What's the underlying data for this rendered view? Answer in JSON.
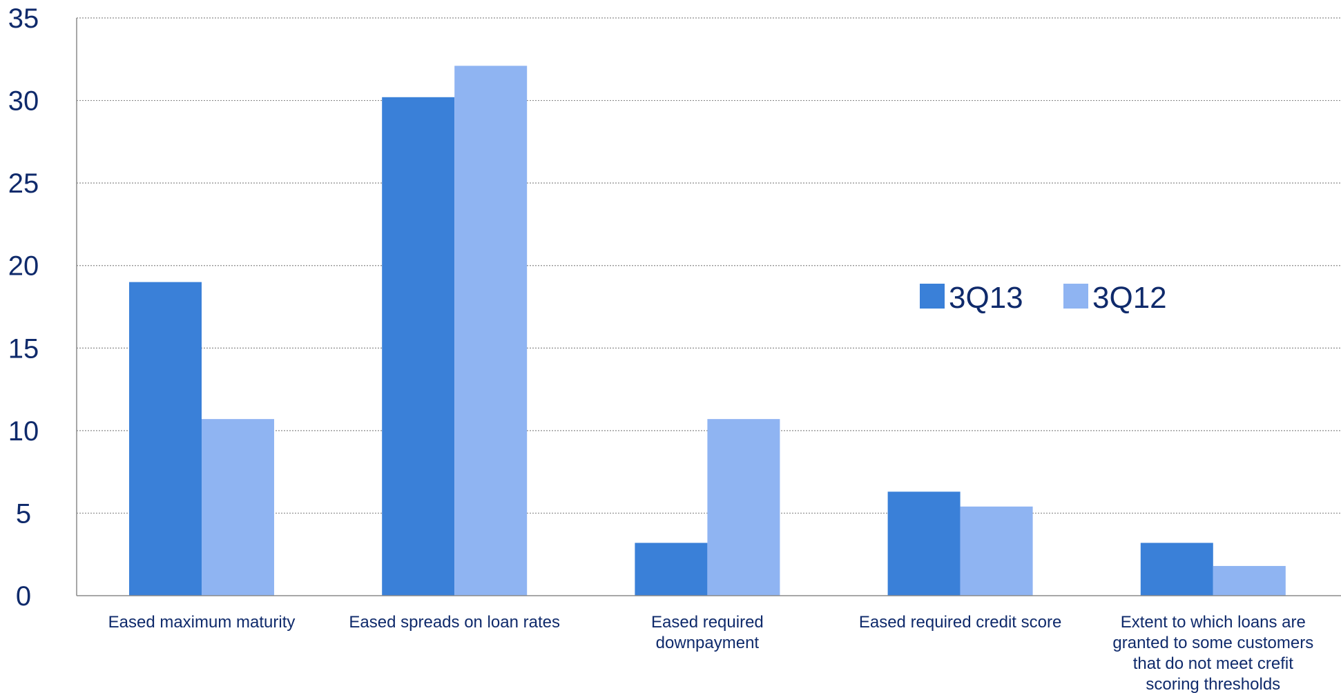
{
  "chart_data": {
    "type": "bar",
    "title": "",
    "xlabel": "",
    "ylabel": "",
    "ylim": [
      0,
      35
    ],
    "yticks": [
      0,
      5,
      10,
      15,
      20,
      25,
      30,
      35
    ],
    "grid": true,
    "legend_position": "center-right",
    "categories": [
      [
        "Eased maximum maturity"
      ],
      [
        "Eased spreads on loan rates"
      ],
      [
        "Eased required",
        "downpayment"
      ],
      [
        "Eased required credit score"
      ],
      [
        "Extent to which loans are",
        "granted to some customers",
        "that do not meet crefit",
        "scoring thresholds"
      ]
    ],
    "series": [
      {
        "name": "3Q13",
        "color": "#3a80d8",
        "values": [
          19.0,
          30.2,
          3.2,
          6.3,
          3.2
        ]
      },
      {
        "name": "3Q12",
        "color": "#8fb4f2",
        "values": [
          10.7,
          32.1,
          10.7,
          5.4,
          1.8
        ]
      }
    ],
    "colors": {
      "text": "#0f2a6b",
      "axis": "#8a8a8a",
      "grid": "#8a8a8a"
    }
  }
}
